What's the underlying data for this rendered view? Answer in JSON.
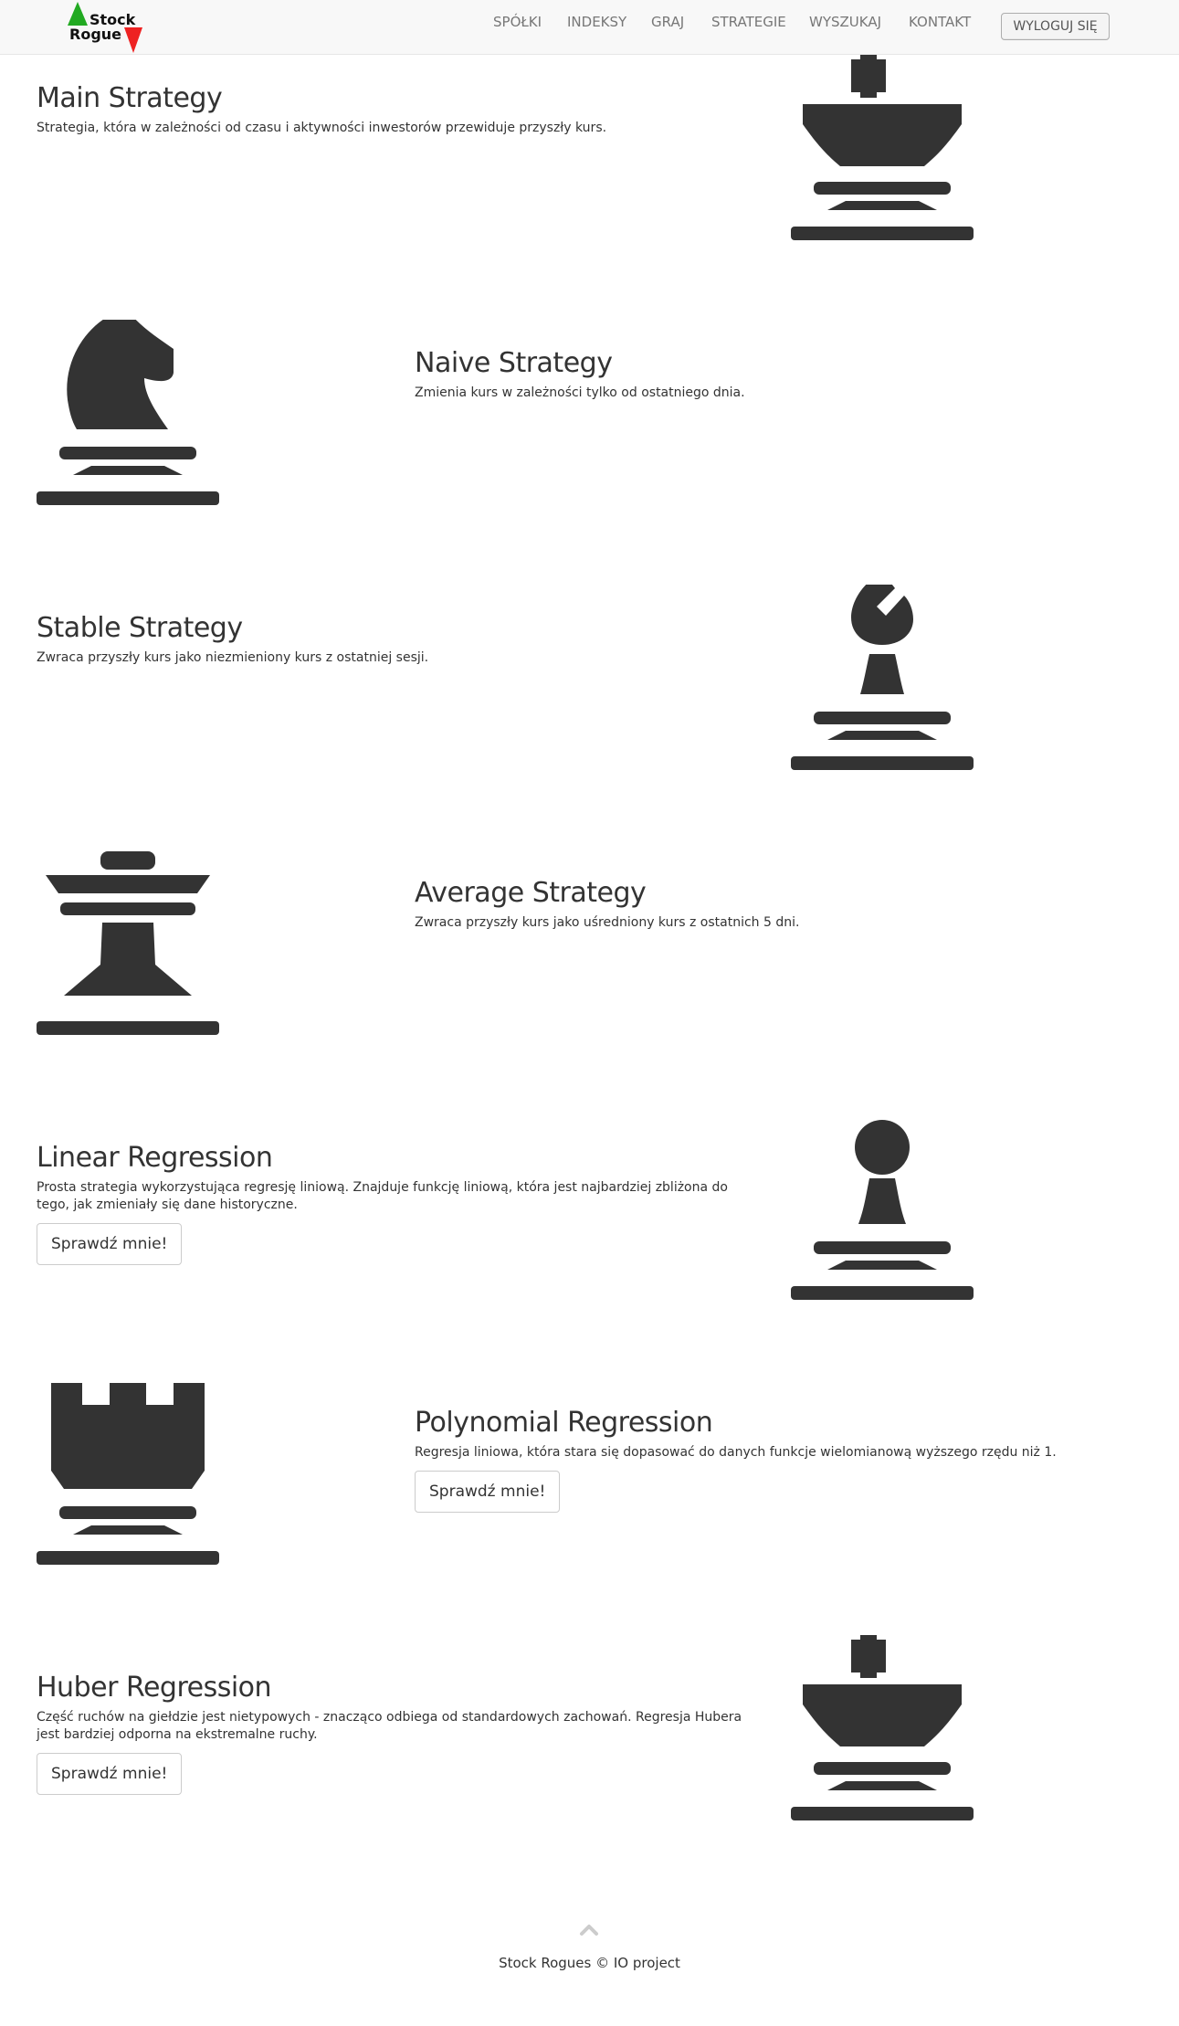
{
  "brand": {
    "line1": "Stock",
    "line2": "Rogue"
  },
  "nav": {
    "items": [
      {
        "label": "SPÓŁKI"
      },
      {
        "label": "INDEKSY"
      },
      {
        "label": "GRAJ"
      },
      {
        "label": "STRATEGIE"
      },
      {
        "label": "WYSZUKAJ"
      },
      {
        "label": "KONTAKT"
      }
    ],
    "logout_label": "WYLOGUJ SIĘ"
  },
  "strategies": [
    {
      "title": "Main Strategy",
      "description": "Strategia, która w zależności od czasu i aktywności inwestorów przewiduje przyszły kurs.",
      "piece_icon": "king-icon"
    },
    {
      "title": "Naive Strategy",
      "description": "Zmienia kurs w zależności tylko od ostatniego dnia.",
      "piece_icon": "knight-icon"
    },
    {
      "title": "Stable Strategy",
      "description": "Zwraca przyszły kurs jako niezmieniony kurs z ostatniej sesji.",
      "piece_icon": "bishop-icon"
    },
    {
      "title": "Average Strategy",
      "description": "Zwraca przyszły kurs jako uśredniony kurs z ostatnich 5 dni.",
      "piece_icon": "queen-icon"
    },
    {
      "title": "Linear Regression",
      "description": "Prosta strategia wykorzystująca regresję liniową. Znajduje funkcję liniową, która jest najbardziej zbliżona do tego, jak zmieniały się dane historyczne.",
      "button_label": "Sprawdź mnie!",
      "piece_icon": "pawn-icon"
    },
    {
      "title": "Polynomial Regression",
      "description": "Regresja liniowa, która stara się dopasować do danych funkcje wielomianową wyższego rzędu niż 1.",
      "button_label": "Sprawdź mnie!",
      "piece_icon": "rook-icon"
    },
    {
      "title": "Huber Regression",
      "description": "Część ruchów na giełdzie jest nietypowych - znacząco odbiega od standardowych zachowań. Regresja Hubera jest bardziej odporna na ekstremalne ruchy.",
      "button_label": "Sprawdź mnie!",
      "piece_icon": "king-icon"
    }
  ],
  "footer": {
    "copyright": "Stock Rogues © IO project",
    "up_icon": "chevron-up-icon"
  },
  "colors": {
    "piece": "#333333",
    "piece_edge": "#5b8fd6",
    "logo_green": "#22aa22",
    "logo_red": "#ee2222"
  }
}
